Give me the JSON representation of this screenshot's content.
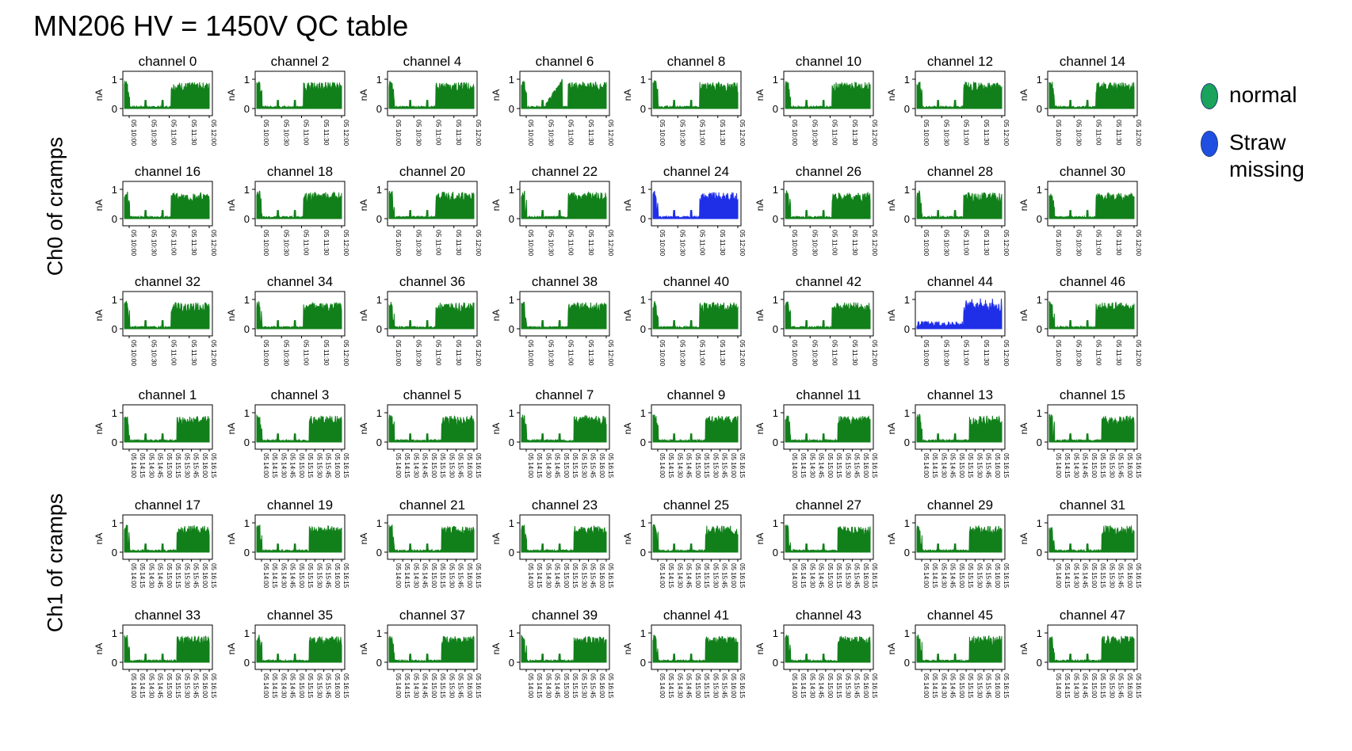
{
  "title": "MN206 HV = 1450V QC table",
  "groups": [
    {
      "label": "Ch0 of cramps",
      "time_ticks": [
        "05 10:00",
        "05 10:30",
        "05 11:00",
        "05 11:30",
        "05 12:00"
      ],
      "rows": [
        [
          0,
          2,
          4,
          6,
          8,
          10,
          12,
          14
        ],
        [
          16,
          18,
          20,
          22,
          24,
          26,
          28,
          30
        ],
        [
          32,
          34,
          36,
          38,
          40,
          42,
          44,
          46
        ]
      ]
    },
    {
      "label": "Ch1 of cramps",
      "time_ticks": [
        "05 14:00",
        "05 14:15",
        "05 14:30",
        "05 14:45",
        "05 15:00",
        "05 15:15",
        "05 15:30",
        "05 15:45",
        "05 16:00",
        "05 16:15"
      ],
      "rows": [
        [
          1,
          3,
          5,
          7,
          9,
          11,
          13,
          15
        ],
        [
          17,
          19,
          21,
          23,
          25,
          27,
          29,
          31
        ],
        [
          33,
          35,
          37,
          39,
          41,
          43,
          45,
          47
        ]
      ]
    }
  ],
  "legend": [
    {
      "label": "normal",
      "color": "#1aa35a"
    },
    {
      "label": "Straw missing",
      "color": "#1f4fe0"
    }
  ],
  "chart_data": {
    "type": "line",
    "ylabel": "nA",
    "yticks": [
      0,
      1
    ],
    "title_prefix": "channel ",
    "series_color_normal": "#11801a",
    "series_color_missing": "#1f2fe8",
    "straw_missing_channels": [
      24,
      44
    ],
    "anomalous_channels": [
      6
    ]
  }
}
